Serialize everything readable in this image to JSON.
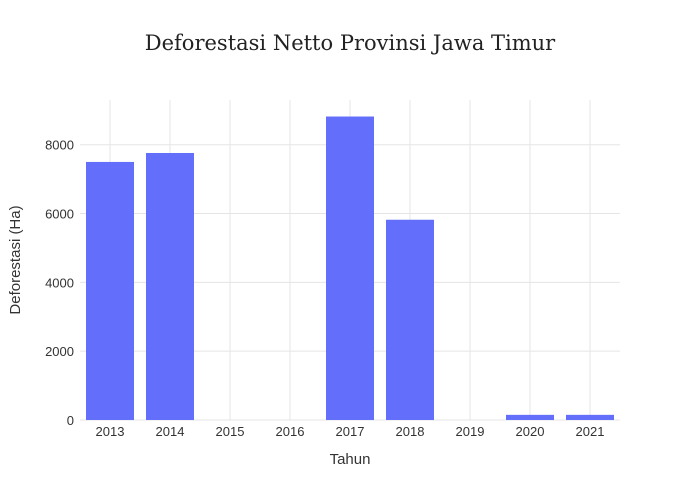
{
  "chart_data": {
    "type": "bar",
    "title": "Deforestasi Netto Provinsi Jawa Timur",
    "xlabel": "Tahun",
    "ylabel": "Deforestasi (Ha)",
    "categories": [
      "2013",
      "2014",
      "2015",
      "2016",
      "2017",
      "2018",
      "2019",
      "2020",
      "2021"
    ],
    "values": [
      7500,
      7760,
      0,
      0,
      8820,
      5820,
      0,
      150,
      150
    ],
    "ylim": [
      0,
      9300
    ],
    "yticks": [
      0,
      2000,
      4000,
      6000,
      8000
    ],
    "ytick_labels": [
      "0",
      "2000",
      "4000",
      "6000",
      "8000"
    ],
    "grid": true,
    "legend": "none",
    "bar_color": "#636efa"
  }
}
